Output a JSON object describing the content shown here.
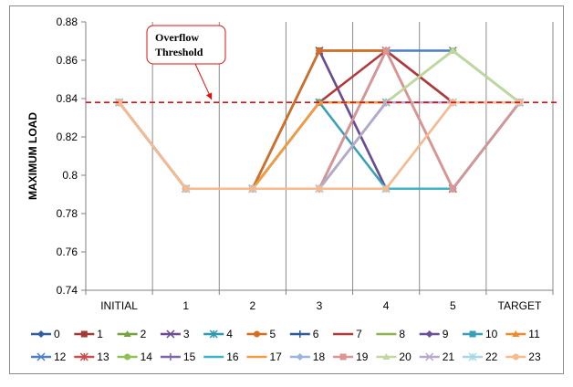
{
  "chart_data": {
    "type": "line",
    "title": "",
    "xlabel": "",
    "ylabel": "MAXIMUM LOAD",
    "categories": [
      "INITIAL",
      "1",
      "2",
      "3",
      "4",
      "5",
      "TARGET"
    ],
    "ylim": [
      0.74,
      0.88
    ],
    "yticks": [
      "0.74",
      "0.76",
      "0.78",
      "0.8",
      "0.82",
      "0.84",
      "0.86",
      "0.88"
    ],
    "grid": "vertical",
    "legend": "bottom",
    "threshold": {
      "value": 0.838,
      "label_line1": "Overflow",
      "label_line2": "Threshold",
      "color": "#e01010"
    },
    "series": [
      {
        "name": "0",
        "color": "#2f5f9e",
        "marker": "diamond",
        "values": [
          0.838,
          0.793,
          0.793,
          0.865,
          0.793,
          0.793,
          0.838
        ]
      },
      {
        "name": "1",
        "color": "#a23b36",
        "marker": "square",
        "values": [
          0.838,
          0.793,
          0.793,
          0.865,
          0.865,
          0.793,
          0.838
        ]
      },
      {
        "name": "2",
        "color": "#76a13b",
        "marker": "triangle",
        "values": [
          0.838,
          0.793,
          0.793,
          0.838,
          0.838,
          0.838,
          0.838
        ]
      },
      {
        "name": "3",
        "color": "#6d4b93",
        "marker": "x",
        "values": [
          0.838,
          0.793,
          0.793,
          0.865,
          0.793,
          0.793,
          0.838
        ]
      },
      {
        "name": "4",
        "color": "#2e9aaf",
        "marker": "star",
        "values": [
          0.838,
          0.793,
          0.793,
          0.838,
          0.838,
          0.838,
          0.838
        ]
      },
      {
        "name": "5",
        "color": "#d3701f",
        "marker": "circle",
        "values": [
          0.838,
          0.793,
          0.793,
          0.865,
          0.865,
          0.838,
          0.838
        ]
      },
      {
        "name": "6",
        "color": "#2e5b97",
        "marker": "plus",
        "values": [
          0.838,
          0.793,
          0.793,
          0.793,
          0.865,
          0.838,
          0.838
        ]
      },
      {
        "name": "7",
        "color": "#b2393a",
        "marker": "dash",
        "values": [
          0.838,
          0.793,
          0.793,
          0.838,
          0.865,
          0.838,
          0.838
        ]
      },
      {
        "name": "8",
        "color": "#8db44a",
        "marker": "dash",
        "values": [
          0.838,
          0.793,
          0.793,
          0.793,
          0.838,
          0.865,
          0.838
        ]
      },
      {
        "name": "9",
        "color": "#6b4f9a",
        "marker": "diamond",
        "values": [
          0.838,
          0.793,
          0.793,
          0.793,
          0.838,
          0.838,
          0.838
        ]
      },
      {
        "name": "10",
        "color": "#35a0b7",
        "marker": "square",
        "values": [
          0.838,
          0.793,
          0.793,
          0.838,
          0.793,
          0.793,
          0.838
        ]
      },
      {
        "name": "11",
        "color": "#f08a2a",
        "marker": "triangle",
        "values": [
          0.838,
          0.793,
          0.793,
          0.838,
          0.838,
          0.838,
          0.838
        ]
      },
      {
        "name": "12",
        "color": "#4c7fc4",
        "marker": "x",
        "values": [
          0.838,
          0.793,
          0.793,
          0.793,
          0.865,
          0.865,
          0.838
        ]
      },
      {
        "name": "13",
        "color": "#c94f4d",
        "marker": "star",
        "values": [
          0.838,
          0.793,
          0.793,
          0.793,
          0.865,
          0.793,
          0.838
        ]
      },
      {
        "name": "14",
        "color": "#8ec152",
        "marker": "circle",
        "values": [
          0.838,
          0.793,
          0.793,
          0.793,
          0.838,
          0.865,
          0.838
        ]
      },
      {
        "name": "15",
        "color": "#8064a8",
        "marker": "plus",
        "values": [
          0.838,
          0.793,
          0.793,
          0.793,
          0.838,
          0.838,
          0.838
        ]
      },
      {
        "name": "16",
        "color": "#3fb2c6",
        "marker": "dash",
        "values": [
          0.838,
          0.793,
          0.793,
          0.793,
          0.793,
          0.793,
          0.838
        ]
      },
      {
        "name": "17",
        "color": "#f59a3e",
        "marker": "dash",
        "values": [
          0.838,
          0.793,
          0.793,
          0.838,
          0.838,
          0.838,
          0.838
        ]
      },
      {
        "name": "18",
        "color": "#98b3dd",
        "marker": "diamond",
        "values": [
          0.838,
          0.793,
          0.793,
          0.793,
          0.838,
          0.838,
          0.838
        ]
      },
      {
        "name": "19",
        "color": "#d99694",
        "marker": "square",
        "values": [
          0.838,
          0.793,
          0.793,
          0.793,
          0.865,
          0.793,
          0.838
        ]
      },
      {
        "name": "20",
        "color": "#c0d7a0",
        "marker": "triangle",
        "values": [
          0.838,
          0.793,
          0.793,
          0.793,
          0.838,
          0.865,
          0.838
        ]
      },
      {
        "name": "21",
        "color": "#b5a7cd",
        "marker": "x",
        "values": [
          0.838,
          0.793,
          0.793,
          0.793,
          0.838,
          0.838,
          0.838
        ]
      },
      {
        "name": "22",
        "color": "#a6d8e4",
        "marker": "star",
        "values": [
          0.838,
          0.793,
          0.793,
          0.793,
          0.793,
          0.838,
          0.838
        ]
      },
      {
        "name": "23",
        "color": "#f9b98c",
        "marker": "circle",
        "values": [
          0.838,
          0.793,
          0.793,
          0.793,
          0.793,
          0.838,
          0.838
        ]
      }
    ]
  }
}
